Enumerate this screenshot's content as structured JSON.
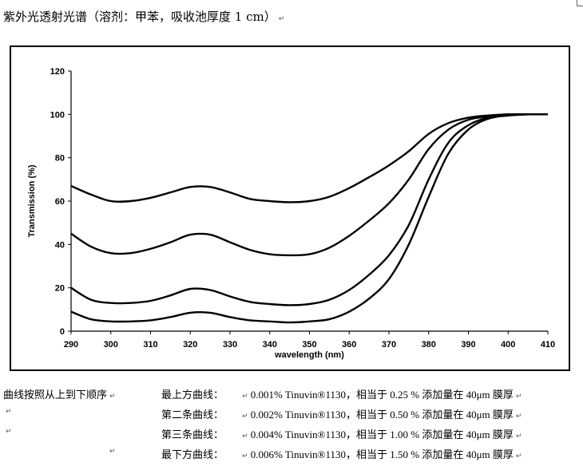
{
  "heading": "紫外光透射光谱（溶剂：甲苯，吸收池厚度 1 cm）",
  "return_mark": "↵",
  "chart_data": {
    "type": "line",
    "title": "",
    "xlabel": "wavelength (nm)",
    "ylabel": "Transmission (%)",
    "xlim": [
      290,
      410
    ],
    "ylim": [
      0,
      120
    ],
    "xticks": [
      290,
      300,
      310,
      320,
      330,
      340,
      350,
      360,
      370,
      380,
      390,
      400,
      410
    ],
    "yticks": [
      0,
      20,
      40,
      60,
      80,
      100,
      120
    ],
    "grid": false,
    "legend": "none",
    "line_color": "#000000",
    "series": [
      {
        "x": [
          290,
          295,
          300,
          305,
          310,
          315,
          320,
          325,
          330,
          335,
          340,
          345,
          350,
          355,
          360,
          365,
          370,
          375,
          380,
          385,
          390,
          395,
          400,
          405,
          410
        ],
        "y": [
          67,
          63,
          60,
          60,
          61.5,
          64,
          66.5,
          66.5,
          64,
          61,
          60,
          59.5,
          60,
          62,
          66,
          71,
          76.5,
          83,
          91,
          96,
          98.5,
          99.5,
          100,
          100,
          100
        ]
      },
      {
        "x": [
          290,
          295,
          300,
          305,
          310,
          315,
          320,
          325,
          330,
          335,
          340,
          345,
          350,
          355,
          360,
          365,
          370,
          375,
          380,
          385,
          390,
          395,
          400,
          405,
          410
        ],
        "y": [
          45,
          39,
          36,
          36,
          38,
          41,
          44.5,
          44.5,
          41,
          37.5,
          35.5,
          35,
          35.5,
          38.5,
          44,
          51,
          59,
          70,
          84,
          93,
          97.5,
          99,
          100,
          100,
          100
        ]
      },
      {
        "x": [
          290,
          295,
          300,
          305,
          310,
          315,
          320,
          325,
          330,
          335,
          340,
          345,
          350,
          355,
          360,
          365,
          370,
          375,
          380,
          385,
          390,
          395,
          400,
          405,
          410
        ],
        "y": [
          20,
          14.5,
          13,
          13,
          14,
          16.5,
          19.5,
          19,
          16,
          13.5,
          12.5,
          12,
          12.5,
          14.5,
          19,
          26,
          35,
          49,
          70,
          87,
          95,
          98.5,
          99.5,
          100,
          100
        ]
      },
      {
        "x": [
          290,
          295,
          300,
          305,
          310,
          315,
          320,
          325,
          330,
          335,
          340,
          345,
          350,
          355,
          360,
          365,
          370,
          375,
          380,
          385,
          390,
          395,
          400,
          405,
          410
        ],
        "y": [
          9,
          5.5,
          4.5,
          4.5,
          5,
          6.5,
          8.5,
          8.5,
          6.5,
          5,
          4.5,
          4,
          4.5,
          5.5,
          9,
          15,
          24,
          40,
          62,
          82,
          93,
          98,
          99.5,
          100,
          100
        ]
      }
    ]
  },
  "notes": {
    "lead": "曲线按照从上到下顺序",
    "rows": [
      {
        "label": "最上方曲线：",
        "desc": "0.001% Tinuvin®1130，相当于 0.25 % 添加量在 40μm 膜厚"
      },
      {
        "label": "第二条曲线：",
        "desc": "0.002% Tinuvin®1130，相当于 0.50 % 添加量在 40μm 膜厚"
      },
      {
        "label": "第三条曲线：",
        "desc": "0.004% Tinuvin®1130，相当于 1.00 % 添加量在 40μm 膜厚"
      },
      {
        "label": "最下方曲线：",
        "desc": "0.006% Tinuvin®1130，相当于 1.50 % 添加量在 40μm 膜厚"
      }
    ]
  }
}
